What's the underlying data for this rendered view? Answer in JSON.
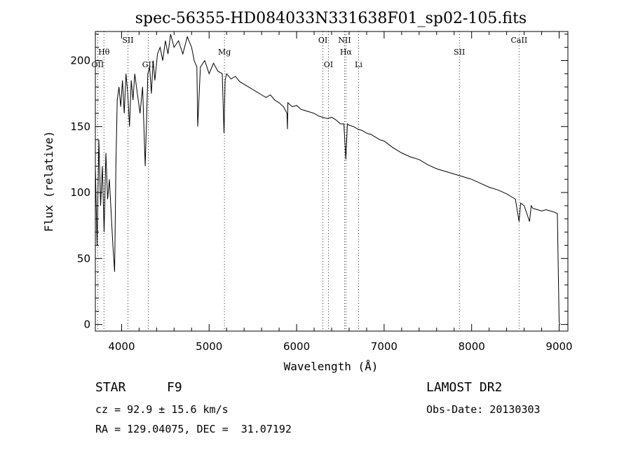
{
  "chart_data": {
    "type": "line",
    "title": "spec-56355-HD084033N331638F01_sp02-105.fits",
    "xlabel": "Wavelength (Å)",
    "ylabel": "Flux (relative)",
    "xlim": [
      3700,
      9100
    ],
    "ylim": [
      -5,
      222
    ],
    "grid": false,
    "xticks": [
      4000,
      5000,
      6000,
      7000,
      8000,
      9000
    ],
    "yticks": [
      0,
      50,
      100,
      150,
      200
    ],
    "series": [
      {
        "x": [
          3700,
          3720,
          3740,
          3760,
          3780,
          3800,
          3820,
          3840,
          3860,
          3880,
          3900,
          3920,
          3935,
          3950,
          3970,
          3990,
          4010,
          4030,
          4050,
          4070,
          4090,
          4110,
          4130,
          4150,
          4180,
          4210,
          4240,
          4270,
          4300,
          4320,
          4340,
          4360,
          4380,
          4410,
          4440,
          4470,
          4500,
          4530,
          4560,
          4600,
          4650,
          4700,
          4750,
          4800,
          4830,
          4860,
          4870,
          4900,
          4950,
          5000,
          5050,
          5100,
          5150,
          5170,
          5183,
          5200,
          5250,
          5300,
          5350,
          5400,
          5450,
          5500,
          5550,
          5600,
          5650,
          5700,
          5750,
          5800,
          5850,
          5890,
          5895,
          5900,
          5950,
          6000,
          6050,
          6100,
          6150,
          6200,
          6250,
          6300,
          6350,
          6400,
          6450,
          6500,
          6540,
          6563,
          6580,
          6600,
          6650,
          6700,
          6750,
          6800,
          6850,
          6900,
          6950,
          7000,
          7100,
          7200,
          7300,
          7400,
          7500,
          7600,
          7700,
          7800,
          7900,
          8000,
          8100,
          8200,
          8300,
          8400,
          8500,
          8542,
          8560,
          8600,
          8662,
          8680,
          8700,
          8750,
          8800,
          8850,
          8900,
          8950,
          8980,
          8990,
          9000,
          9010
        ],
        "y": [
          120,
          60,
          140,
          90,
          120,
          70,
          130,
          95,
          110,
          85,
          60,
          40,
          120,
          170,
          180,
          165,
          185,
          160,
          190,
          175,
          150,
          185,
          170,
          190,
          175,
          160,
          180,
          120,
          190,
          195,
          175,
          200,
          185,
          205,
          210,
          200,
          215,
          205,
          220,
          210,
          215,
          205,
          218,
          210,
          200,
          195,
          150,
          195,
          200,
          190,
          198,
          192,
          190,
          145,
          185,
          190,
          186,
          188,
          184,
          182,
          180,
          178,
          176,
          174,
          172,
          174,
          170,
          168,
          165,
          160,
          148,
          168,
          165,
          166,
          163,
          162,
          161,
          160,
          158,
          157,
          156,
          157,
          155,
          152,
          152,
          125,
          152,
          151,
          150,
          148,
          147,
          145,
          144,
          142,
          140,
          139,
          134,
          130,
          127,
          125,
          121,
          118,
          116,
          114,
          112,
          110,
          107,
          104,
          102,
          99,
          95,
          78,
          92,
          90,
          78,
          90,
          88,
          87,
          86,
          87,
          86,
          85,
          84,
          40,
          2,
          0
        ]
      }
    ],
    "line_markers": [
      {
        "label": "Hθ",
        "x": 3798,
        "row": 2
      },
      {
        "label": "OII",
        "x": 3727,
        "row": 3
      },
      {
        "label": "SII",
        "x": 4072,
        "row": 1
      },
      {
        "label": "GII",
        "x": 4305,
        "row": 3
      },
      {
        "label": "Mg",
        "x": 5175,
        "row": 2
      },
      {
        "label": "OI",
        "x": 6300,
        "row": 1
      },
      {
        "label": "OI",
        "x": 6363,
        "row": 3
      },
      {
        "label": "NII",
        "x": 6548,
        "row": 1
      },
      {
        "label": "Hα",
        "x": 6563,
        "row": 2
      },
      {
        "label": "Li",
        "x": 6708,
        "row": 3
      },
      {
        "label": "SII",
        "x": 7860,
        "row": 2
      },
      {
        "label": "CaII",
        "x": 8542,
        "row": 1
      }
    ]
  },
  "info": {
    "object_type": "STAR",
    "subclass": "F9",
    "survey": "LAMOST DR2",
    "redshift": "cz = 92.9 ± 15.6 km/s",
    "obs_date": "Obs-Date: 20130303",
    "coords": "RA = 129.04075, DEC =  31.07192"
  }
}
